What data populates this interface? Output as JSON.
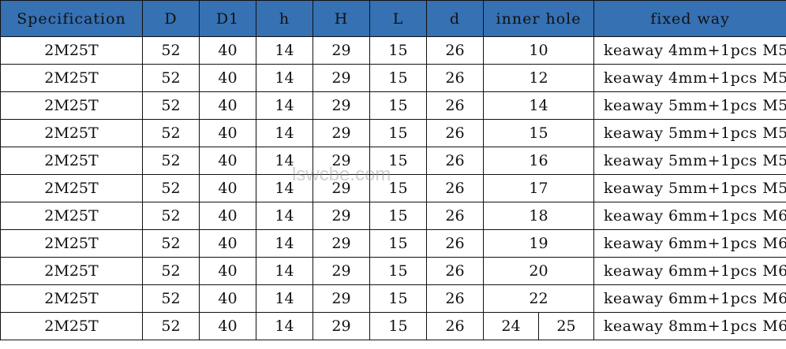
{
  "header_color": "#3571b3",
  "watermark": "lswcbe.com",
  "columns": [
    "Specification",
    "D",
    "D1",
    "h",
    "H",
    "L",
    "d",
    "inner hole",
    "fixed way"
  ],
  "rows": [
    {
      "spec": "2M25T",
      "D": "52",
      "D1": "40",
      "h": "14",
      "H": "29",
      "L": "15",
      "d": "26",
      "inner_hole": [
        "10"
      ],
      "fixed_way": "keaway 4mm+1pcs M5"
    },
    {
      "spec": "2M25T",
      "D": "52",
      "D1": "40",
      "h": "14",
      "H": "29",
      "L": "15",
      "d": "26",
      "inner_hole": [
        "12"
      ],
      "fixed_way": "keaway 4mm+1pcs M5"
    },
    {
      "spec": "2M25T",
      "D": "52",
      "D1": "40",
      "h": "14",
      "H": "29",
      "L": "15",
      "d": "26",
      "inner_hole": [
        "14"
      ],
      "fixed_way": "keaway 5mm+1pcs M5"
    },
    {
      "spec": "2M25T",
      "D": "52",
      "D1": "40",
      "h": "14",
      "H": "29",
      "L": "15",
      "d": "26",
      "inner_hole": [
        "15"
      ],
      "fixed_way": "keaway 5mm+1pcs M5"
    },
    {
      "spec": "2M25T",
      "D": "52",
      "D1": "40",
      "h": "14",
      "H": "29",
      "L": "15",
      "d": "26",
      "inner_hole": [
        "16"
      ],
      "fixed_way": "keaway 5mm+1pcs M5"
    },
    {
      "spec": "2M25T",
      "D": "52",
      "D1": "40",
      "h": "14",
      "H": "29",
      "L": "15",
      "d": "26",
      "inner_hole": [
        "17"
      ],
      "fixed_way": "keaway 5mm+1pcs M5"
    },
    {
      "spec": "2M25T",
      "D": "52",
      "D1": "40",
      "h": "14",
      "H": "29",
      "L": "15",
      "d": "26",
      "inner_hole": [
        "18"
      ],
      "fixed_way": "keaway 6mm+1pcs M6"
    },
    {
      "spec": "2M25T",
      "D": "52",
      "D1": "40",
      "h": "14",
      "H": "29",
      "L": "15",
      "d": "26",
      "inner_hole": [
        "19"
      ],
      "fixed_way": "keaway 6mm+1pcs M6"
    },
    {
      "spec": "2M25T",
      "D": "52",
      "D1": "40",
      "h": "14",
      "H": "29",
      "L": "15",
      "d": "26",
      "inner_hole": [
        "20"
      ],
      "fixed_way": "keaway 6mm+1pcs M6"
    },
    {
      "spec": "2M25T",
      "D": "52",
      "D1": "40",
      "h": "14",
      "H": "29",
      "L": "15",
      "d": "26",
      "inner_hole": [
        "22"
      ],
      "fixed_way": "keaway 6mm+1pcs M6"
    },
    {
      "spec": "2M25T",
      "D": "52",
      "D1": "40",
      "h": "14",
      "H": "29",
      "L": "15",
      "d": "26",
      "inner_hole": [
        "24",
        "25"
      ],
      "fixed_way": "keaway 8mm+1pcs M6"
    }
  ]
}
